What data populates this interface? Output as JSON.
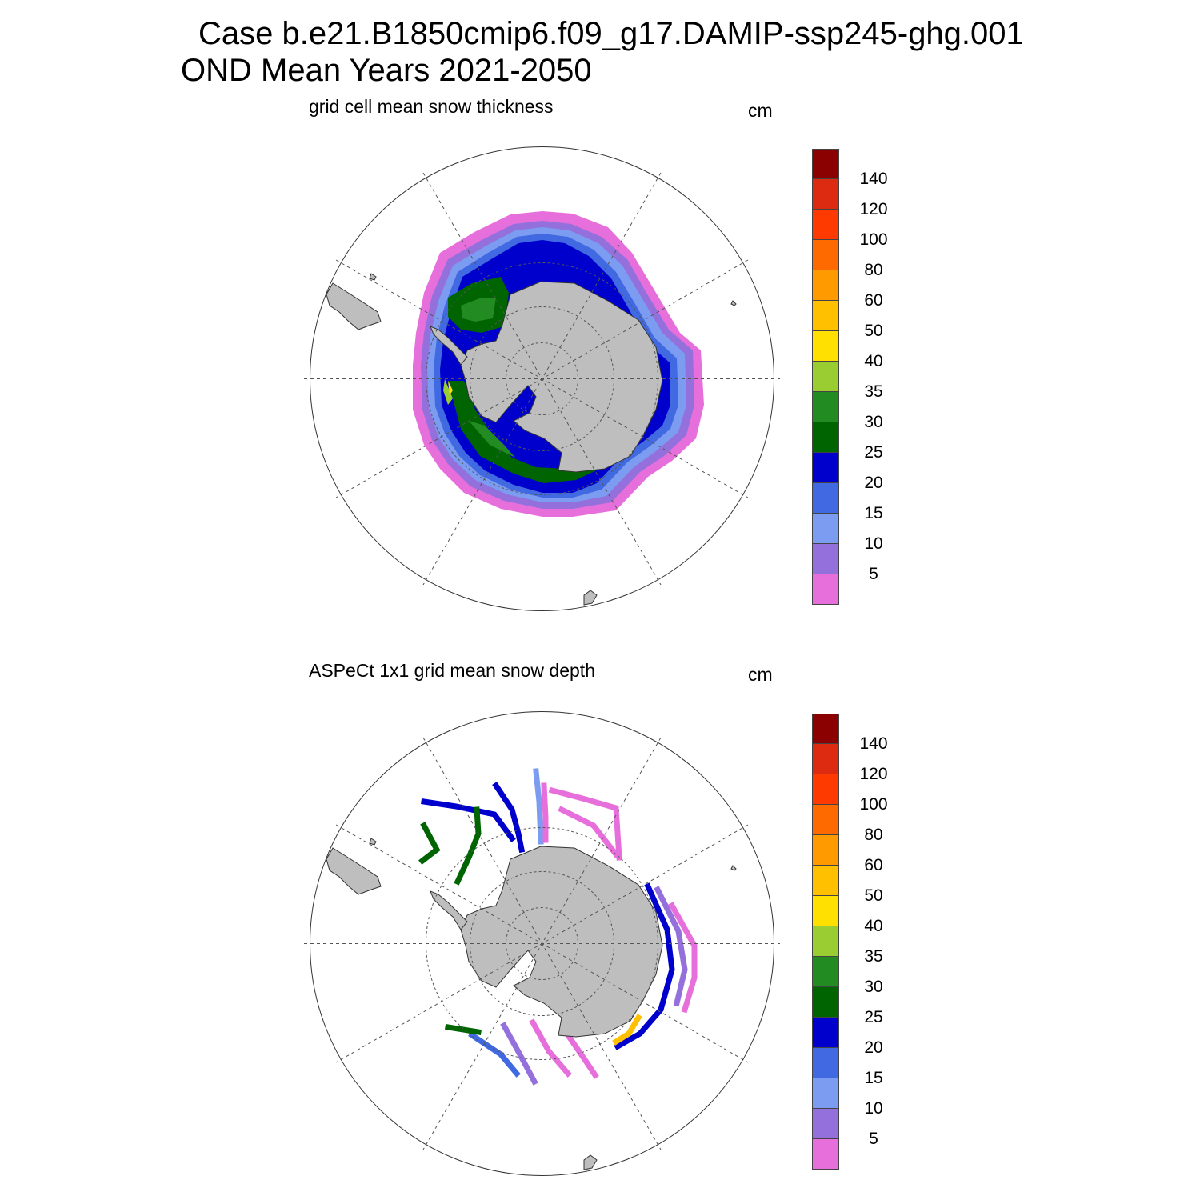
{
  "figure": {
    "title_line1": "Case b.e21.B1850cmip6.f09_g17.DAMIP-ssp245-ghg.001",
    "title_line2": "OND Mean   Years 2021-2050"
  },
  "colors": {
    "land": "#bebebe",
    "grid": "#555555",
    "scale": [
      "#e66fdc",
      "#9370db",
      "#7b9cf0",
      "#4169e1",
      "#0000cd",
      "#006400",
      "#228b22",
      "#9acd32",
      "#ffe000",
      "#ffc000",
      "#ff9a00",
      "#ff6a00",
      "#ff3a00",
      "#dc2b10",
      "#8b0000"
    ]
  },
  "panels": [
    {
      "id": "model",
      "title": "grid cell mean snow thickness",
      "units": "cm",
      "colorbar_labels": [
        "5",
        "10",
        "15",
        "20",
        "25",
        "30",
        "35",
        "40",
        "50",
        "60",
        "80",
        "100",
        "120",
        "140"
      ]
    },
    {
      "id": "obs",
      "title": "ASPeCt 1x1 grid mean snow depth",
      "units": "cm",
      "colorbar_labels": [
        "5",
        "10",
        "15",
        "20",
        "25",
        "30",
        "35",
        "40",
        "50",
        "60",
        "80",
        "100",
        "120",
        "140"
      ]
    }
  ]
}
